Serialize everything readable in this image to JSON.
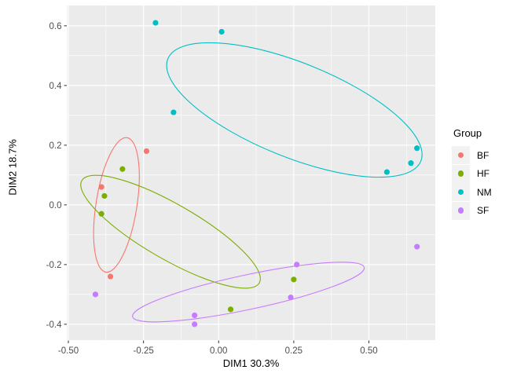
{
  "chart_data": {
    "type": "scatter",
    "title": "",
    "xlabel": "DIM1 30.3%",
    "ylabel": "DIM2 18.7%",
    "xlim": [
      -0.504,
      0.721
    ],
    "ylim": [
      -0.453,
      0.668
    ],
    "x_ticks": [
      -0.5,
      -0.25,
      0,
      0.25,
      0.5
    ],
    "x_tick_labels": [
      "-0.50",
      "-0.25",
      "0.00",
      "0.25",
      "0.50"
    ],
    "x_minor_ticks": [
      -0.375,
      -0.125,
      0.125,
      0.375,
      0.625
    ],
    "y_ticks": [
      0.6,
      0.4,
      0.2,
      0,
      -0.2,
      -0.4
    ],
    "y_tick_labels": [
      "0.6",
      "0.4",
      "0.2",
      "0.0",
      "-0.2",
      "-0.4"
    ],
    "y_minor_ticks": [
      0.5,
      0.3,
      0.1,
      -0.1,
      -0.3
    ],
    "grid": "on",
    "panel_bg": "#EBEBEB",
    "grid_color": "#FFFFFF",
    "tick_color": "#333333",
    "axis_text_color": "#4D4D4D",
    "legend": {
      "title": "Group",
      "position": "right",
      "key_bg": "#F2F2F2"
    },
    "series": [
      {
        "name": "BF",
        "color": "#F8766D",
        "points": [
          [
            -0.24,
            0.18
          ],
          [
            -0.39,
            0.06
          ],
          [
            -0.36,
            -0.24
          ]
        ],
        "ellipse": {
          "cx": -0.34,
          "cy": 0.0,
          "rx": 0.068,
          "ry": 0.228,
          "angle": 9
        }
      },
      {
        "name": "HF",
        "color": "#7CAE00",
        "points": [
          [
            -0.32,
            0.12
          ],
          [
            -0.38,
            0.03
          ],
          [
            -0.39,
            -0.03
          ],
          [
            0.04,
            -0.35
          ],
          [
            0.25,
            -0.25
          ]
        ],
        "ellipse": {
          "cx": -0.16,
          "cy": -0.09,
          "rx": 0.341,
          "ry": 0.092,
          "angle": 30
        }
      },
      {
        "name": "NM",
        "color": "#00BFC4",
        "points": [
          [
            -0.21,
            0.61
          ],
          [
            0.01,
            0.58
          ],
          [
            -0.15,
            0.31
          ],
          [
            0.66,
            0.19
          ],
          [
            0.64,
            0.14
          ],
          [
            0.56,
            0.11
          ]
        ],
        "ellipse": {
          "cx": 0.252,
          "cy": 0.318,
          "rx": 0.454,
          "ry": 0.158,
          "angle": 22
        }
      },
      {
        "name": "SF",
        "color": "#C77CFF",
        "points": [
          [
            -0.41,
            -0.3
          ],
          [
            -0.08,
            -0.37
          ],
          [
            -0.08,
            -0.4
          ],
          [
            0.26,
            -0.2
          ],
          [
            0.24,
            -0.31
          ],
          [
            0.66,
            -0.14
          ]
        ],
        "ellipse": {
          "cx": 0.099,
          "cy": -0.292,
          "rx": 0.394,
          "ry": 0.058,
          "angle": -12
        }
      }
    ],
    "point_radius_px": 3.6
  }
}
